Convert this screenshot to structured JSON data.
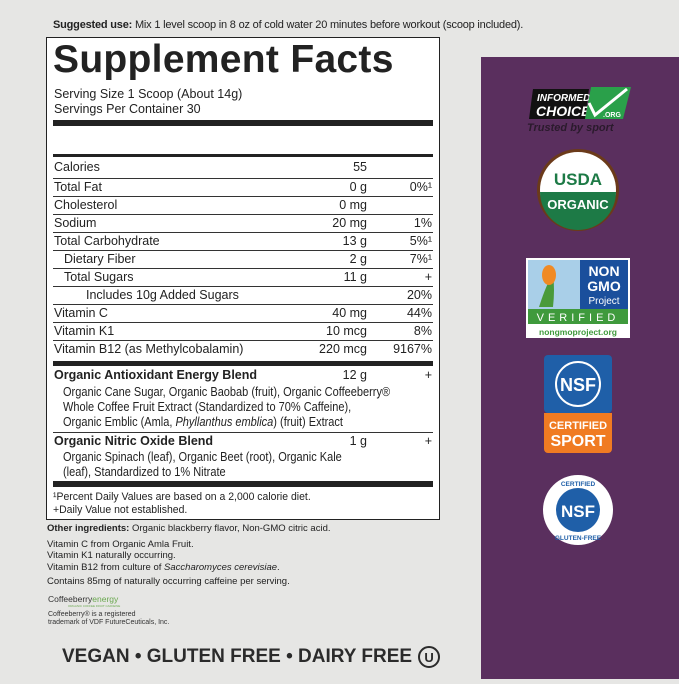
{
  "suggested_use": {
    "label": "Suggested use:",
    "text": " Mix 1 level scoop in 8 oz of cold water 20 minutes before workout (scoop included)."
  },
  "facts": {
    "title": "Supplement Facts",
    "serving_size": "Serving Size 1 Scoop (About 14g)",
    "servings_per_container": "Servings Per Container 30",
    "rows": [
      {
        "name": "Calories",
        "amount": "55",
        "dv": ""
      },
      {
        "name": "Total Fat",
        "amount": "0 g",
        "dv": "0%¹"
      },
      {
        "name": "Cholesterol",
        "amount": "0 mg",
        "dv": ""
      },
      {
        "name": "Sodium",
        "amount": "20 mg",
        "dv": "1%"
      },
      {
        "name": "Total Carbohydrate",
        "amount": "13 g",
        "dv": "5%¹"
      },
      {
        "name": "Dietary Fiber",
        "amount": "2 g",
        "dv": "7%¹"
      },
      {
        "name": "Total Sugars",
        "amount": "11 g",
        "dv": "+"
      },
      {
        "name": "Includes 10g Added Sugars",
        "amount": "",
        "dv": "20%"
      },
      {
        "name": "Vitamin C",
        "amount": "40 mg",
        "dv": "44%"
      },
      {
        "name": "Vitamin K1",
        "amount": "10 mcg",
        "dv": "8%"
      },
      {
        "name": "Vitamin B12 (as Methylcobalamin)",
        "amount": "220 mcg",
        "dv": "9167%"
      }
    ],
    "blends": [
      {
        "name": "Organic Antioxidant Energy Blend",
        "amount": "12 g",
        "dv": "+",
        "ingredients_1": "Organic Cane Sugar, Organic Baobab (fruit), Organic Coffeeberry®",
        "ingredients_2": "Whole Coffee Fruit Extract (Standardized to 70% Caffeine),",
        "ingredients_3a": "Organic Emblic (Amla, ",
        "ingredients_3b": "Phyllanthus emblica",
        "ingredients_3c": ") (fruit) Extract"
      },
      {
        "name": "Organic Nitric Oxide Blend",
        "amount": "1 g",
        "dv": "+",
        "ingredients_1": "Organic Spinach (leaf), Organic Beet (root), Organic Kale",
        "ingredients_2": "(leaf), Standardized to 1% Nitrate"
      }
    ],
    "footnote_1": "¹Percent Daily Values are based on a 2,000 calorie diet.",
    "footnote_2": "+Daily Value not established."
  },
  "other": {
    "label": "Other ingredients:",
    "text": " Organic blackberry flavor, Non-GMO citric acid.",
    "line2": "Vitamin C from Organic Amla Fruit.",
    "line3": "Vitamin K1 naturally occurring.",
    "line4a": "Vitamin B12 from culture of ",
    "line4b": "Saccharomyces cerevisiae",
    "line4c": ".",
    "line5": "Contains 85mg of naturally occurring caffeine per serving."
  },
  "coffeeberry": {
    "logo_a": "Coffeeberry",
    "logo_b": "energy",
    "logo_sub": "ORGANIC COFFEE FRUIT CAFFEINE",
    "tm_1": "Coffeeberry® is a registered",
    "tm_2": "trademark of VDF FutureCeuticals, Inc."
  },
  "claims": {
    "text": "VEGAN • GLUTEN FREE • DAIRY FREE",
    "kosher": "U"
  },
  "badges": {
    "informed_choice": {
      "line1": "INFORMED-",
      "line2": "CHOICE",
      "org": ".ORG",
      "tagline": "Trusted by sport"
    },
    "usda": {
      "top": "USDA",
      "bottom": "ORGANIC"
    },
    "non_gmo": {
      "line1": "NON",
      "line2": "GMO",
      "line3": "Project",
      "verified": "VERIFIED",
      "url": "nongmoproject.org"
    },
    "nsf_sport": {
      "logo": "NSF",
      "line1": "CERTIFIED",
      "line2": "SPORT"
    },
    "nsf_gluten": {
      "top": "CERTIFIED",
      "logo": "NSF",
      "bottom": "GLUTEN-FREE"
    }
  },
  "colors": {
    "panel": "#5a2f5e",
    "nsf_blue": "#1f5fa8",
    "nsf_orange": "#f07b22",
    "usda_green": "#1d7a46",
    "informed_green": "#2aa04a"
  }
}
